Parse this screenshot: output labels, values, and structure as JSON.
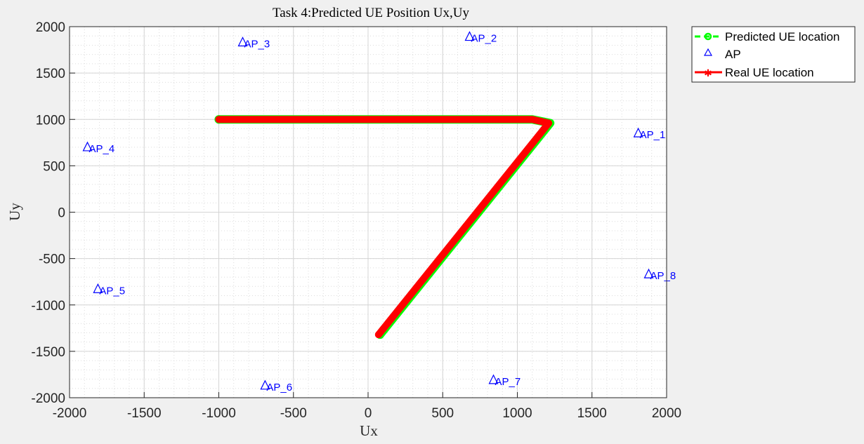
{
  "chart_data": {
    "type": "scatter",
    "title": "Task 4:Predicted UE Position Ux,Uy",
    "xlabel": "Ux",
    "ylabel": "Uy",
    "xlim": [
      -2000,
      2000
    ],
    "ylim": [
      -2000,
      2000
    ],
    "xticks": [
      -2000,
      -1500,
      -1000,
      -500,
      0,
      500,
      1000,
      1500,
      2000
    ],
    "yticks": [
      -2000,
      -1500,
      -1000,
      -500,
      0,
      500,
      1000,
      1500,
      2000
    ],
    "x_tick_labels": [
      "-2000",
      "-1500",
      "-1000",
      "-500",
      "0",
      "500",
      "1000",
      "1500",
      "2000"
    ],
    "y_tick_labels": [
      "-2000",
      "-1500",
      "-1000",
      "-500",
      "0",
      "500",
      "1000",
      "1500",
      "2000"
    ],
    "grid": true,
    "minor_grid": true,
    "legend_position": "outside-top-right",
    "legend": [
      {
        "label": "Predicted UE location",
        "color": "#00ff00",
        "style": "dashed-circle"
      },
      {
        "label": "AP",
        "color": "#0000ff",
        "style": "triangle"
      },
      {
        "label": "Real UE location",
        "color": "#ff0000",
        "style": "solid-asterisk"
      }
    ],
    "access_points": [
      {
        "label": "AP_1",
        "x": 1810,
        "y": 850
      },
      {
        "label": "AP_2",
        "x": 680,
        "y": 1890
      },
      {
        "label": "AP_3",
        "x": -840,
        "y": 1830
      },
      {
        "label": "AP_4",
        "x": -1880,
        "y": 700
      },
      {
        "label": "AP_5",
        "x": -1810,
        "y": -830
      },
      {
        "label": "AP_6",
        "x": -690,
        "y": -1870
      },
      {
        "label": "AP_7",
        "x": 840,
        "y": -1810
      },
      {
        "label": "AP_8",
        "x": 1880,
        "y": -670
      }
    ],
    "series": [
      {
        "name": "Predicted UE location",
        "color": "#00ff00",
        "x": [
          -1000,
          1100,
          1220,
          80
        ],
        "y": [
          1000,
          1000,
          960,
          -1320
        ]
      },
      {
        "name": "Real UE location",
        "color": "#ff0000",
        "x": [
          -1000,
          1100,
          1210,
          70
        ],
        "y": [
          1000,
          1000,
          960,
          -1320
        ]
      }
    ]
  }
}
